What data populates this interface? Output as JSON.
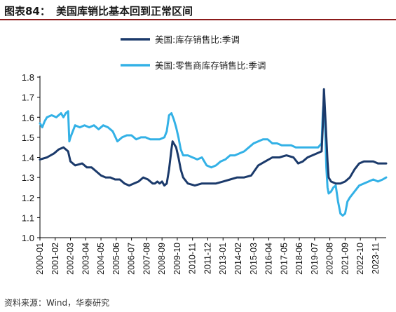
{
  "header": {
    "figure_no": "图表84：",
    "title": "美国库销比基本回到正常区间"
  },
  "footer": {
    "source": "资料来源：Wind，华泰研究"
  },
  "colors": {
    "series1": "#1b3a6b",
    "series2": "#33b1e6",
    "rule": "#8b1a1a"
  },
  "chart_data": {
    "type": "line",
    "title": "",
    "xlabel": "",
    "ylabel": "",
    "ylim": [
      1.0,
      1.8
    ],
    "yticks": [
      "1.0",
      "1.1",
      "1.2",
      "1.3",
      "1.4",
      "1.5",
      "1.6",
      "1.7",
      "1.8"
    ],
    "xticks": [
      "2000-01",
      "2001-02",
      "2002-03",
      "2003-04",
      "2004-05",
      "2005-06",
      "2006-07",
      "2007-08",
      "2008-09",
      "2009-10",
      "2010-11",
      "2011-12",
      "2013-01",
      "2014-02",
      "2015-03",
      "2016-04",
      "2017-05",
      "2018-06",
      "2019-07",
      "2020-08",
      "2021-09",
      "2022-10",
      "2023-11"
    ],
    "legend": [
      "美国:库存销售比:季调",
      "美国:零售商库存销售比:季调"
    ],
    "legend_position": "top",
    "series": [
      {
        "name": "美国:库存销售比:季调",
        "points": [
          [
            0,
            1.39
          ],
          [
            6,
            1.4
          ],
          [
            12,
            1.42
          ],
          [
            16,
            1.44
          ],
          [
            20,
            1.45
          ],
          [
            24,
            1.43
          ],
          [
            26,
            1.38
          ],
          [
            30,
            1.36
          ],
          [
            36,
            1.37
          ],
          [
            40,
            1.35
          ],
          [
            44,
            1.35
          ],
          [
            48,
            1.33
          ],
          [
            52,
            1.31
          ],
          [
            56,
            1.3
          ],
          [
            60,
            1.3
          ],
          [
            64,
            1.29
          ],
          [
            68,
            1.29
          ],
          [
            72,
            1.27
          ],
          [
            76,
            1.26
          ],
          [
            80,
            1.27
          ],
          [
            84,
            1.28
          ],
          [
            88,
            1.3
          ],
          [
            92,
            1.29
          ],
          [
            96,
            1.27
          ],
          [
            98,
            1.27
          ],
          [
            100,
            1.28
          ],
          [
            102,
            1.27
          ],
          [
            104,
            1.28
          ],
          [
            106,
            1.26
          ],
          [
            108,
            1.27
          ],
          [
            110,
            1.34
          ],
          [
            112,
            1.44
          ],
          [
            113,
            1.48
          ],
          [
            114,
            1.47
          ],
          [
            116,
            1.45
          ],
          [
            118,
            1.4
          ],
          [
            120,
            1.34
          ],
          [
            122,
            1.3
          ],
          [
            126,
            1.27
          ],
          [
            132,
            1.26
          ],
          [
            138,
            1.27
          ],
          [
            144,
            1.27
          ],
          [
            150,
            1.27
          ],
          [
            156,
            1.28
          ],
          [
            162,
            1.29
          ],
          [
            168,
            1.3
          ],
          [
            174,
            1.3
          ],
          [
            180,
            1.31
          ],
          [
            186,
            1.36
          ],
          [
            192,
            1.38
          ],
          [
            198,
            1.4
          ],
          [
            204,
            1.4
          ],
          [
            210,
            1.41
          ],
          [
            216,
            1.4
          ],
          [
            220,
            1.37
          ],
          [
            224,
            1.38
          ],
          [
            228,
            1.4
          ],
          [
            232,
            1.41
          ],
          [
            236,
            1.42
          ],
          [
            240,
            1.43
          ],
          [
            241,
            1.56
          ],
          [
            242,
            1.74
          ],
          [
            243,
            1.62
          ],
          [
            244,
            1.5
          ],
          [
            245,
            1.38
          ],
          [
            246,
            1.3
          ],
          [
            248,
            1.28
          ],
          [
            252,
            1.27
          ],
          [
            256,
            1.27
          ],
          [
            260,
            1.28
          ],
          [
            264,
            1.3
          ],
          [
            268,
            1.34
          ],
          [
            272,
            1.37
          ],
          [
            276,
            1.38
          ],
          [
            280,
            1.38
          ],
          [
            284,
            1.38
          ],
          [
            288,
            1.37
          ],
          [
            292,
            1.37
          ],
          [
            295,
            1.37
          ]
        ]
      },
      {
        "name": "美国:零售商库存销售比:季调",
        "points": [
          [
            0,
            1.57
          ],
          [
            2,
            1.55
          ],
          [
            4,
            1.58
          ],
          [
            6,
            1.6
          ],
          [
            10,
            1.61
          ],
          [
            14,
            1.6
          ],
          [
            18,
            1.62
          ],
          [
            20,
            1.6
          ],
          [
            22,
            1.62
          ],
          [
            24,
            1.63
          ],
          [
            25,
            1.48
          ],
          [
            26,
            1.5
          ],
          [
            30,
            1.56
          ],
          [
            34,
            1.55
          ],
          [
            38,
            1.56
          ],
          [
            42,
            1.55
          ],
          [
            46,
            1.56
          ],
          [
            50,
            1.54
          ],
          [
            54,
            1.56
          ],
          [
            58,
            1.55
          ],
          [
            62,
            1.53
          ],
          [
            66,
            1.48
          ],
          [
            70,
            1.5
          ],
          [
            74,
            1.51
          ],
          [
            78,
            1.51
          ],
          [
            82,
            1.49
          ],
          [
            86,
            1.5
          ],
          [
            90,
            1.5
          ],
          [
            94,
            1.49
          ],
          [
            98,
            1.49
          ],
          [
            102,
            1.49
          ],
          [
            106,
            1.5
          ],
          [
            108,
            1.53
          ],
          [
            110,
            1.61
          ],
          [
            112,
            1.62
          ],
          [
            114,
            1.59
          ],
          [
            116,
            1.55
          ],
          [
            118,
            1.5
          ],
          [
            120,
            1.44
          ],
          [
            122,
            1.41
          ],
          [
            126,
            1.41
          ],
          [
            130,
            1.4
          ],
          [
            134,
            1.39
          ],
          [
            138,
            1.4
          ],
          [
            142,
            1.36
          ],
          [
            146,
            1.35
          ],
          [
            150,
            1.36
          ],
          [
            154,
            1.38
          ],
          [
            158,
            1.39
          ],
          [
            162,
            1.41
          ],
          [
            166,
            1.41
          ],
          [
            170,
            1.42
          ],
          [
            174,
            1.43
          ],
          [
            178,
            1.45
          ],
          [
            182,
            1.47
          ],
          [
            186,
            1.48
          ],
          [
            190,
            1.49
          ],
          [
            194,
            1.49
          ],
          [
            198,
            1.47
          ],
          [
            202,
            1.47
          ],
          [
            206,
            1.46
          ],
          [
            210,
            1.46
          ],
          [
            214,
            1.46
          ],
          [
            218,
            1.45
          ],
          [
            222,
            1.45
          ],
          [
            226,
            1.45
          ],
          [
            230,
            1.45
          ],
          [
            234,
            1.45
          ],
          [
            237,
            1.45
          ],
          [
            240,
            1.47
          ],
          [
            241,
            1.62
          ],
          [
            242,
            1.69
          ],
          [
            243,
            1.55
          ],
          [
            244,
            1.35
          ],
          [
            245,
            1.25
          ],
          [
            246,
            1.22
          ],
          [
            248,
            1.23
          ],
          [
            250,
            1.25
          ],
          [
            252,
            1.26
          ],
          [
            254,
            1.18
          ],
          [
            256,
            1.12
          ],
          [
            258,
            1.11
          ],
          [
            260,
            1.12
          ],
          [
            262,
            1.18
          ],
          [
            264,
            1.2
          ],
          [
            268,
            1.23
          ],
          [
            272,
            1.26
          ],
          [
            276,
            1.27
          ],
          [
            280,
            1.28
          ],
          [
            284,
            1.29
          ],
          [
            288,
            1.28
          ],
          [
            292,
            1.29
          ],
          [
            295,
            1.3
          ]
        ]
      }
    ]
  }
}
